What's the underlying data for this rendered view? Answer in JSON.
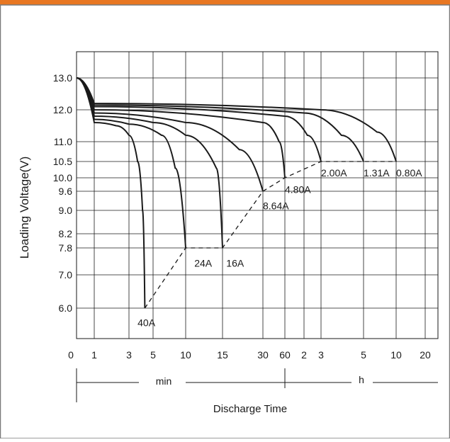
{
  "colors": {
    "accent": "#e87722",
    "frame": "#7a7a7a",
    "ink": "#1a1a1a"
  },
  "chart_data": {
    "type": "line",
    "xlabel": "Discharge Time",
    "ylabel": "Loading  Voltage(V)",
    "x_scale": "log",
    "y_ticks": [
      "13.0",
      "12.0",
      "11.0",
      "10.5",
      "10.0",
      "9.6",
      "9.0",
      "8.2",
      "7.8",
      "7.0",
      "6.0"
    ],
    "x_ticks": [
      {
        "label": "0",
        "minutes": 0
      },
      {
        "label": "1",
        "minutes": 1
      },
      {
        "label": "3",
        "minutes": 3
      },
      {
        "label": "5",
        "minutes": 5
      },
      {
        "label": "10",
        "minutes": 10
      },
      {
        "label": "15",
        "minutes": 15
      },
      {
        "label": "30",
        "minutes": 30
      },
      {
        "label": "60",
        "minutes": 60
      },
      {
        "label": "2",
        "minutes": 120
      },
      {
        "label": "3",
        "minutes": 180
      },
      {
        "label": "5",
        "minutes": 300
      },
      {
        "label": "10",
        "minutes": 600
      },
      {
        "label": "20",
        "minutes": 1200
      }
    ],
    "unit_labels": {
      "min": "min",
      "h": "h"
    },
    "series": [
      {
        "name": "40A",
        "points": [
          [
            0.5,
            13.0
          ],
          [
            1,
            11.6
          ],
          [
            2,
            11.5
          ],
          [
            3,
            11.2
          ],
          [
            3.6,
            10.5
          ],
          [
            4,
            9.0
          ],
          [
            4.2,
            6.0
          ]
        ],
        "label_pos": [
          3.6,
          5.7
        ]
      },
      {
        "name": "24A",
        "points": [
          [
            0.5,
            13.0
          ],
          [
            1,
            11.7
          ],
          [
            3,
            11.55
          ],
          [
            6,
            11.2
          ],
          [
            8,
            10.3
          ],
          [
            10,
            7.8
          ]
        ],
        "label_pos": [
          11,
          7.5
        ]
      },
      {
        "name": "16A",
        "points": [
          [
            0.5,
            13.0
          ],
          [
            1,
            11.8
          ],
          [
            5,
            11.6
          ],
          [
            10,
            11.2
          ],
          [
            14,
            10.3
          ],
          [
            15,
            7.8
          ]
        ],
        "label_pos": [
          16,
          7.5
        ]
      },
      {
        "name": "8.64A",
        "points": [
          [
            0.5,
            13.0
          ],
          [
            1,
            11.9
          ],
          [
            10,
            11.6
          ],
          [
            20,
            10.8
          ],
          [
            30,
            9.6
          ]
        ],
        "label_pos": [
          30,
          9.3
        ]
      },
      {
        "name": "4.80A",
        "points": [
          [
            0.5,
            13.0
          ],
          [
            1,
            12.0
          ],
          [
            30,
            11.6
          ],
          [
            50,
            11.0
          ],
          [
            60,
            10.0
          ]
        ],
        "label_pos": [
          60,
          9.8
        ]
      },
      {
        "name": "2.00A",
        "points": [
          [
            0.5,
            13.0
          ],
          [
            1,
            12.1
          ],
          [
            60,
            11.8
          ],
          [
            130,
            11.2
          ],
          [
            180,
            10.5
          ]
        ],
        "label_pos": [
          180,
          10.3
        ]
      },
      {
        "name": "1.31A",
        "points": [
          [
            0.5,
            13.0
          ],
          [
            1,
            12.15
          ],
          [
            120,
            11.9
          ],
          [
            230,
            11.2
          ],
          [
            300,
            10.5
          ]
        ],
        "label_pos": [
          300,
          10.3
        ]
      },
      {
        "name": "0.80A",
        "points": [
          [
            0.5,
            13.0
          ],
          [
            1,
            12.2
          ],
          [
            180,
            12.0
          ],
          [
            400,
            11.3
          ],
          [
            600,
            10.5
          ]
        ],
        "label_pos": [
          600,
          10.3
        ]
      }
    ],
    "end_voltage_line": [
      [
        4.2,
        6.0
      ],
      [
        10,
        7.8
      ],
      [
        15,
        7.8
      ],
      [
        30,
        9.6
      ],
      [
        60,
        10.0
      ],
      [
        180,
        10.5
      ],
      [
        300,
        10.5
      ],
      [
        600,
        10.5
      ]
    ],
    "grid": true
  }
}
